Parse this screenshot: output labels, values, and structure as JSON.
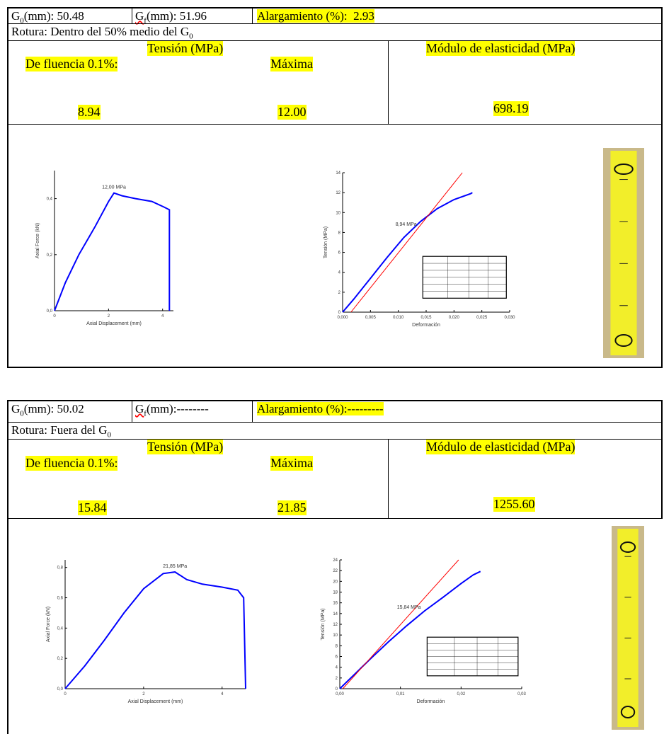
{
  "records": [
    {
      "g0": {
        "base": "G",
        "sub": "0",
        "rest": "(mm): 50.48"
      },
      "gf": {
        "base": "G",
        "sub": "f",
        "rest": "(mm): 51.96"
      },
      "elongation": "Alargamiento (%):  2.93",
      "rupture": {
        "text": "Rotura: Dentro del 50% medio del G",
        "sub": "0"
      },
      "stress_header": "Tensión (MPa)",
      "yield_label": "De fluencia 0.1%:",
      "max_label": "Máxima",
      "modulus_header": "Módulo de elasticidad (MPa)",
      "yield_value": "8.94",
      "max_value": "12.00",
      "modulus_value": "698.19",
      "force_chart": {
        "type": "line",
        "x_label": "Axial Displacement (mm)",
        "y_label": "Axial Force (kN)",
        "annotation": "12,00 MPa",
        "xlim": [
          0,
          4.4
        ],
        "ylim": [
          0,
          0.5
        ],
        "xticks": [
          0,
          2,
          4
        ],
        "yticks": [
          {
            "value": 0,
            "label": "0,0"
          },
          {
            "value": 0.2,
            "label": "0,2"
          },
          {
            "value": 0.4,
            "label": "0,4"
          }
        ],
        "series": [
          {
            "color": "#0000ff",
            "x": [
              0,
              0.4,
              0.9,
              1.5,
              2.0,
              2.2,
              2.5,
              3.0,
              3.6,
              4.05,
              4.25,
              4.25
            ],
            "values": [
              0,
              0.1,
              0.2,
              0.3,
              0.39,
              0.42,
              0.41,
              0.4,
              0.39,
              0.37,
              0.36,
              0
            ]
          }
        ]
      },
      "stress_chart": {
        "type": "line",
        "x_label": "Deformación",
        "y_label": "Tensión (MPa)",
        "annotation": "8,94 MPa",
        "xlim": [
          0,
          0.03
        ],
        "ylim": [
          0,
          14
        ],
        "xticks": [
          {
            "value": 0,
            "label": "0,000"
          },
          {
            "value": 0.005,
            "label": "0,005"
          },
          {
            "value": 0.01,
            "label": "0,010"
          },
          {
            "value": 0.015,
            "label": "0,015"
          },
          {
            "value": 0.02,
            "label": "0,020"
          },
          {
            "value": 0.025,
            "label": "0,025"
          },
          {
            "value": 0.03,
            "label": "0,030"
          }
        ],
        "yticks": [
          0,
          2,
          4,
          6,
          8,
          10,
          12,
          14
        ],
        "series": [
          {
            "color": "#0000ff",
            "x": [
              0,
              0.002,
              0.005,
              0.008,
              0.011,
              0.014,
              0.017,
              0.02,
              0.023,
              0.0233
            ],
            "values": [
              0,
              1.3,
              3.4,
              5.5,
              7.5,
              9.1,
              10.4,
              11.3,
              11.9,
              12.0
            ]
          },
          {
            "color": "#ff0000",
            "x": [
              0.0015,
              0.0215
            ],
            "values": [
              0,
              14
            ]
          }
        ]
      }
    },
    {
      "g0": {
        "base": "G",
        "sub": "0",
        "rest": "(mm): 50.02"
      },
      "gf": {
        "base": "G",
        "sub": "f",
        "rest": "(mm):--------"
      },
      "elongation": "Alargamiento (%):---------",
      "rupture": {
        "text": "Rotura: Fuera del G",
        "sub": "0"
      },
      "stress_header": "Tensión (MPa)",
      "yield_label": "De fluencia 0.1%:",
      "max_label": "Máxima",
      "modulus_header": "Módulo de elasticidad (MPa)",
      "yield_value": "15.84",
      "max_value": "21.85",
      "modulus_value": "1255.60",
      "force_chart": {
        "type": "line",
        "x_label": "Axial Displacement (mm)",
        "y_label": "Axial Force (kN)",
        "annotation": "21,85 MPa",
        "xlim": [
          0,
          4.6
        ],
        "ylim": [
          0,
          0.85
        ],
        "xticks": [
          0,
          2,
          4
        ],
        "yticks": [
          {
            "value": 0,
            "label": "0,0"
          },
          {
            "value": 0.2,
            "label": "0,2"
          },
          {
            "value": 0.4,
            "label": "0,4"
          },
          {
            "value": 0.6,
            "label": "0,6"
          },
          {
            "value": 0.8,
            "label": "0,8"
          }
        ],
        "series": [
          {
            "color": "#0000ff",
            "x": [
              0,
              0.5,
              1,
              1.5,
              2,
              2.5,
              2.8,
              3.1,
              3.5,
              4,
              4.4,
              4.55,
              4.6
            ],
            "values": [
              0,
              0.15,
              0.32,
              0.5,
              0.66,
              0.76,
              0.77,
              0.72,
              0.69,
              0.67,
              0.65,
              0.6,
              0
            ]
          }
        ]
      },
      "stress_chart": {
        "type": "line",
        "x_label": "Deformación",
        "y_label": "Tensión (MPa)",
        "annotation": "15,84 MPa",
        "xlim": [
          0,
          0.03
        ],
        "ylim": [
          0,
          24
        ],
        "xticks": [
          {
            "value": 0,
            "label": "0,00"
          },
          {
            "value": 0.01,
            "label": "0,01"
          },
          {
            "value": 0.02,
            "label": "0,02"
          },
          {
            "value": 0.03,
            "label": "0,03"
          }
        ],
        "yticks": [
          0,
          2,
          4,
          6,
          8,
          10,
          12,
          14,
          16,
          18,
          20,
          22,
          24
        ],
        "series": [
          {
            "color": "#0000ff",
            "x": [
              0,
              0.002,
              0.005,
              0.008,
              0.011,
              0.014,
              0.017,
              0.02,
              0.022,
              0.0232
            ],
            "values": [
              0,
              2.2,
              5.5,
              8.7,
              11.7,
              14.5,
              17.0,
              19.6,
              21.2,
              21.85
            ]
          },
          {
            "color": "#ff0000",
            "x": [
              0.0005,
              0.0196
            ],
            "values": [
              0,
              24
            ]
          }
        ]
      }
    }
  ]
}
